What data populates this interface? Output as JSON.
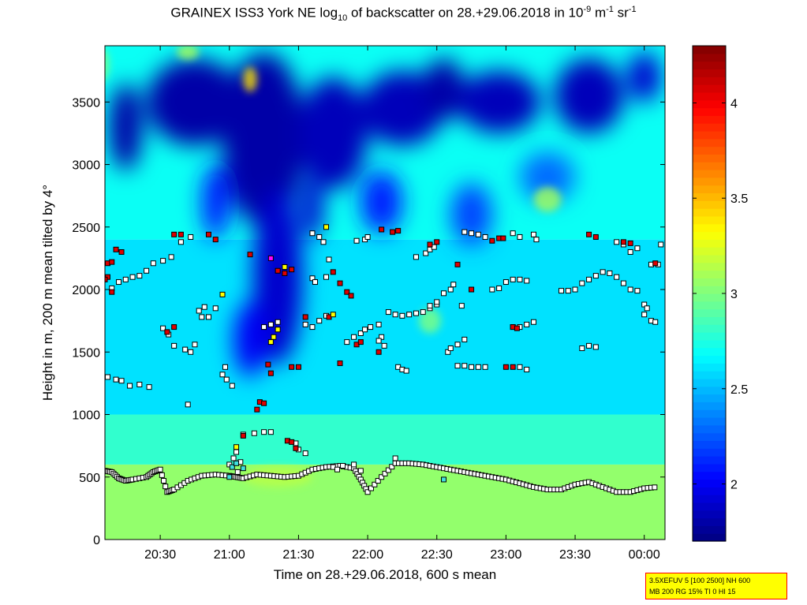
{
  "title": {
    "prefix": "GRAINEX ISS3 York NE log",
    "sub": "10",
    "middle": " of backscatter on 28.+29.06.2018 in 10",
    "sup1": "-9",
    "unit1": " m",
    "sup2": "-1",
    "unit2": " sr",
    "sup3": "-1"
  },
  "info_box": {
    "line1": "3.5XEFUV 5 [100 2500] NH 600",
    "line2": "MB 200 RG 15% TI 0 HI 15"
  },
  "colors": {
    "colormap": "jet",
    "marker_white": "#ffffff",
    "marker_red": "#e00000",
    "marker_yellow": "#ffff00",
    "marker_cyan": "#40e0e0",
    "marker_magenta": "#ff00ff"
  },
  "chart_data": {
    "type": "heatmap",
    "xlabel": "Time on 28.+29.06.2018, 600 s mean",
    "ylabel": "Height in m, 200 m mean tilted by 4°",
    "x_unit": "hours of day (20.1 = 20:06)",
    "xlim": [
      20.1,
      24.15
    ],
    "ylim": [
      0,
      3950
    ],
    "x_ticks": [
      {
        "value": 20.5,
        "label": "20:30"
      },
      {
        "value": 21.0,
        "label": "21:00"
      },
      {
        "value": 21.5,
        "label": "21:30"
      },
      {
        "value": 22.0,
        "label": "22:00"
      },
      {
        "value": 22.5,
        "label": "22:30"
      },
      {
        "value": 23.0,
        "label": "23:00"
      },
      {
        "value": 23.5,
        "label": "23:30"
      },
      {
        "value": 24.0,
        "label": "00:00"
      }
    ],
    "y_ticks": [
      0,
      500,
      1000,
      1500,
      2000,
      2500,
      3000,
      3500
    ],
    "colorbar": {
      "range": [
        1.7,
        4.3
      ],
      "ticks": [
        2,
        2.5,
        3,
        3.5,
        4
      ]
    },
    "background_layers": [
      {
        "y_min": 0,
        "y_max": 600,
        "value": 3.05
      },
      {
        "y_min": 600,
        "y_max": 1000,
        "value": 2.8
      },
      {
        "y_min": 1000,
        "y_max": 2400,
        "value": 2.6
      },
      {
        "y_min": 2400,
        "y_max": 3950,
        "value": 2.7
      }
    ],
    "low_backscatter_patches": [
      {
        "x": 21.25,
        "y": 3200,
        "rx": 0.3,
        "ry": 700,
        "value": 1.8
      },
      {
        "x": 20.75,
        "y": 3500,
        "rx": 0.35,
        "ry": 350,
        "value": 1.8
      },
      {
        "x": 20.25,
        "y": 3300,
        "rx": 0.12,
        "ry": 350,
        "value": 1.8
      },
      {
        "x": 21.35,
        "y": 2100,
        "rx": 0.18,
        "ry": 700,
        "value": 1.9
      },
      {
        "x": 21.15,
        "y": 1600,
        "rx": 0.12,
        "ry": 300,
        "value": 2.0
      },
      {
        "x": 21.75,
        "y": 3250,
        "rx": 0.25,
        "ry": 450,
        "value": 1.85
      },
      {
        "x": 22.25,
        "y": 3450,
        "rx": 0.3,
        "ry": 300,
        "value": 1.85
      },
      {
        "x": 22.55,
        "y": 3600,
        "rx": 0.15,
        "ry": 250,
        "value": 1.8
      },
      {
        "x": 22.95,
        "y": 3500,
        "rx": 0.3,
        "ry": 250,
        "value": 1.85
      },
      {
        "x": 23.6,
        "y": 3550,
        "rx": 0.25,
        "ry": 300,
        "value": 1.85
      },
      {
        "x": 24.0,
        "y": 3700,
        "rx": 0.12,
        "ry": 200,
        "value": 1.9
      },
      {
        "x": 22.1,
        "y": 2700,
        "rx": 0.15,
        "ry": 250,
        "value": 2.1
      },
      {
        "x": 22.75,
        "y": 2600,
        "rx": 0.15,
        "ry": 250,
        "value": 2.2
      },
      {
        "x": 23.3,
        "y": 2900,
        "rx": 0.2,
        "ry": 200,
        "value": 2.3
      },
      {
        "x": 21.6,
        "y": 2650,
        "rx": 0.08,
        "ry": 250,
        "value": 1.9
      },
      {
        "x": 20.9,
        "y": 2700,
        "rx": 0.1,
        "ry": 300,
        "value": 2.1
      }
    ],
    "high_backscatter_patches": [
      {
        "x": 21.15,
        "y": 3680,
        "rx": 0.05,
        "ry": 100,
        "value": 3.4
      },
      {
        "x": 20.7,
        "y": 3900,
        "rx": 0.08,
        "ry": 60,
        "value": 3.1
      },
      {
        "x": 20.05,
        "y": 3800,
        "rx": 0.08,
        "ry": 150,
        "value": 3.0
      },
      {
        "x": 23.3,
        "y": 2720,
        "rx": 0.1,
        "ry": 100,
        "value": 3.1
      },
      {
        "x": 22.45,
        "y": 1750,
        "rx": 0.08,
        "ry": 100,
        "value": 3.0
      },
      {
        "x": 21.35,
        "y": 500,
        "rx": 0.25,
        "ry": 80,
        "value": 3.15
      }
    ],
    "boundary_layer_top": {
      "x": [
        20.1,
        20.15,
        20.2,
        20.25,
        20.3,
        20.4,
        20.45,
        20.5,
        20.55,
        20.6,
        20.7,
        20.8,
        20.9,
        21.0,
        21.05,
        21.1,
        21.2,
        21.3,
        21.4,
        21.5,
        21.6,
        21.7,
        21.8,
        21.9,
        21.95,
        22.0,
        22.1,
        22.2,
        22.3,
        22.4,
        22.5,
        22.6,
        22.7,
        22.8,
        22.9,
        23.0,
        23.1,
        23.2,
        23.3,
        23.4,
        23.5,
        23.6,
        23.7,
        23.8,
        23.9,
        24.0,
        24.1
      ],
      "y": [
        550,
        540,
        490,
        470,
        480,
        500,
        540,
        560,
        380,
        400,
        470,
        510,
        520,
        510,
        500,
        490,
        520,
        510,
        500,
        510,
        560,
        580,
        590,
        570,
        480,
        380,
        500,
        610,
        610,
        600,
        580,
        560,
        540,
        520,
        500,
        480,
        450,
        420,
        400,
        400,
        440,
        460,
        420,
        380,
        380,
        410,
        420
      ]
    },
    "layer_detections": {
      "white": [
        [
          20.12,
          1300
        ],
        [
          20.18,
          1280
        ],
        [
          20.22,
          1270
        ],
        [
          20.28,
          1230
        ],
        [
          20.35,
          1240
        ],
        [
          20.42,
          1220
        ],
        [
          20.15,
          2010
        ],
        [
          20.2,
          2060
        ],
        [
          20.25,
          2080
        ],
        [
          20.3,
          2100
        ],
        [
          20.35,
          2110
        ],
        [
          20.4,
          2150
        ],
        [
          20.45,
          2210
        ],
        [
          20.52,
          2230
        ],
        [
          20.58,
          2260
        ],
        [
          20.65,
          2380
        ],
        [
          20.72,
          2420
        ],
        [
          20.52,
          1690
        ],
        [
          20.56,
          1640
        ],
        [
          20.6,
          1550
        ],
        [
          20.68,
          1520
        ],
        [
          20.72,
          1500
        ],
        [
          20.75,
          1560
        ],
        [
          20.78,
          1830
        ],
        [
          20.82,
          1860
        ],
        [
          20.85,
          1780
        ],
        [
          20.9,
          1850
        ],
        [
          20.7,
          1080
        ],
        [
          20.8,
          1780
        ],
        [
          20.97,
          1380
        ],
        [
          20.98,
          1280
        ],
        [
          21.02,
          1230
        ],
        [
          20.95,
          1320
        ],
        [
          21.0,
          600
        ],
        [
          21.03,
          650
        ],
        [
          21.05,
          700
        ],
        [
          21.08,
          620
        ],
        [
          21.06,
          540
        ],
        [
          21.1,
          840
        ],
        [
          21.18,
          850
        ],
        [
          21.25,
          860
        ],
        [
          21.3,
          860
        ],
        [
          21.25,
          1700
        ],
        [
          21.3,
          1720
        ],
        [
          21.35,
          1740
        ],
        [
          21.5,
          720
        ],
        [
          21.55,
          690
        ],
        [
          21.48,
          770
        ],
        [
          21.55,
          1720
        ],
        [
          21.6,
          1700
        ],
        [
          21.65,
          1750
        ],
        [
          21.7,
          1790
        ],
        [
          21.6,
          2450
        ],
        [
          21.65,
          2420
        ],
        [
          21.68,
          2380
        ],
        [
          21.6,
          2090
        ],
        [
          21.62,
          2060
        ],
        [
          21.7,
          2100
        ],
        [
          21.72,
          2240
        ],
        [
          21.75,
          580
        ],
        [
          21.78,
          560
        ],
        [
          21.82,
          590
        ],
        [
          21.9,
          600
        ],
        [
          21.95,
          550
        ],
        [
          21.85,
          1580
        ],
        [
          21.9,
          1620
        ],
        [
          21.95,
          1650
        ],
        [
          21.98,
          1680
        ],
        [
          22.02,
          1700
        ],
        [
          22.08,
          1720
        ],
        [
          22.1,
          1620
        ],
        [
          22.12,
          1550
        ],
        [
          22.08,
          1590
        ],
        [
          21.92,
          2390
        ],
        [
          21.98,
          2400
        ],
        [
          22.0,
          2420
        ],
        [
          22.15,
          1820
        ],
        [
          22.2,
          1800
        ],
        [
          22.25,
          1790
        ],
        [
          22.3,
          1800
        ],
        [
          22.35,
          1810
        ],
        [
          22.4,
          1820
        ],
        [
          22.45,
          1850
        ],
        [
          22.5,
          1880
        ],
        [
          22.22,
          1380
        ],
        [
          22.25,
          1360
        ],
        [
          22.28,
          1350
        ],
        [
          22.2,
          650
        ],
        [
          22.35,
          2260
        ],
        [
          22.42,
          2290
        ],
        [
          22.45,
          2320
        ],
        [
          22.48,
          2340
        ],
        [
          22.45,
          1870
        ],
        [
          22.5,
          1900
        ],
        [
          22.58,
          1500
        ],
        [
          22.6,
          1530
        ],
        [
          22.65,
          1560
        ],
        [
          22.7,
          1600
        ],
        [
          22.65,
          1390
        ],
        [
          22.7,
          1390
        ],
        [
          22.75,
          1380
        ],
        [
          22.8,
          1380
        ],
        [
          22.85,
          1380
        ],
        [
          22.55,
          1970
        ],
        [
          22.6,
          2000
        ],
        [
          22.62,
          2040
        ],
        [
          22.68,
          1870
        ],
        [
          22.7,
          2460
        ],
        [
          22.75,
          2450
        ],
        [
          22.8,
          2440
        ],
        [
          22.85,
          2420
        ],
        [
          22.9,
          2000
        ],
        [
          22.95,
          2010
        ],
        [
          23.0,
          2060
        ],
        [
          23.05,
          2080
        ],
        [
          23.1,
          2080
        ],
        [
          23.15,
          2070
        ],
        [
          23.05,
          1700
        ],
        [
          23.1,
          1700
        ],
        [
          23.15,
          1720
        ],
        [
          23.2,
          1740
        ],
        [
          23.1,
          1380
        ],
        [
          23.15,
          1360
        ],
        [
          23.05,
          2450
        ],
        [
          23.1,
          2420
        ],
        [
          23.2,
          2440
        ],
        [
          23.22,
          2400
        ],
        [
          23.4,
          1990
        ],
        [
          23.45,
          1990
        ],
        [
          23.5,
          2000
        ],
        [
          23.55,
          2050
        ],
        [
          23.6,
          2080
        ],
        [
          23.65,
          2110
        ],
        [
          23.7,
          2140
        ],
        [
          23.75,
          2130
        ],
        [
          23.8,
          2100
        ],
        [
          23.85,
          2050
        ],
        [
          23.9,
          2000
        ],
        [
          23.95,
          1990
        ],
        [
          24.0,
          1880
        ],
        [
          24.02,
          1850
        ],
        [
          23.55,
          1530
        ],
        [
          23.6,
          1550
        ],
        [
          23.65,
          1540
        ],
        [
          23.8,
          2380
        ],
        [
          23.85,
          2360
        ],
        [
          23.9,
          2300
        ],
        [
          23.95,
          2330
        ],
        [
          24.05,
          2200
        ],
        [
          24.1,
          2200
        ],
        [
          24.05,
          1750
        ],
        [
          24.08,
          1740
        ],
        [
          24.0,
          1800
        ],
        [
          24.12,
          2360
        ]
      ],
      "red": [
        [
          20.12,
          2210
        ],
        [
          20.15,
          2220
        ],
        [
          20.18,
          2320
        ],
        [
          20.22,
          2300
        ],
        [
          20.15,
          1980
        ],
        [
          20.12,
          2100
        ],
        [
          20.1,
          2080
        ],
        [
          20.6,
          2440
        ],
        [
          20.65,
          2440
        ],
        [
          20.6,
          1700
        ],
        [
          20.55,
          1660
        ],
        [
          20.85,
          2440
        ],
        [
          20.9,
          2400
        ],
        [
          21.1,
          830
        ],
        [
          21.2,
          1040
        ],
        [
          21.22,
          1100
        ],
        [
          21.25,
          1090
        ],
        [
          21.15,
          2280
        ],
        [
          21.28,
          1400
        ],
        [
          21.3,
          1330
        ],
        [
          21.35,
          2150
        ],
        [
          21.4,
          2130
        ],
        [
          21.45,
          2160
        ],
        [
          21.42,
          790
        ],
        [
          21.45,
          780
        ],
        [
          21.48,
          730
        ],
        [
          21.45,
          1380
        ],
        [
          21.5,
          1380
        ],
        [
          21.55,
          1780
        ],
        [
          21.75,
          2140
        ],
        [
          21.8,
          2050
        ],
        [
          21.85,
          1980
        ],
        [
          21.88,
          1950
        ],
        [
          21.8,
          1410
        ],
        [
          21.72,
          1780
        ],
        [
          21.92,
          1560
        ],
        [
          21.95,
          1580
        ],
        [
          22.08,
          1500
        ],
        [
          22.1,
          2480
        ],
        [
          22.18,
          2460
        ],
        [
          22.22,
          2470
        ],
        [
          22.45,
          2360
        ],
        [
          22.5,
          2380
        ],
        [
          22.65,
          2200
        ],
        [
          22.75,
          2000
        ],
        [
          22.9,
          2390
        ],
        [
          22.95,
          2410
        ],
        [
          22.98,
          2410
        ],
        [
          23.0,
          1380
        ],
        [
          23.05,
          1380
        ],
        [
          23.05,
          1700
        ],
        [
          23.08,
          1690
        ],
        [
          23.6,
          2440
        ],
        [
          23.65,
          2420
        ],
        [
          23.85,
          2380
        ],
        [
          23.9,
          2370
        ],
        [
          24.08,
          2210
        ]
      ],
      "yellow": [
        [
          20.95,
          1960
        ],
        [
          21.3,
          1580
        ],
        [
          21.32,
          1620
        ],
        [
          21.35,
          1680
        ],
        [
          21.4,
          2180
        ],
        [
          21.7,
          2500
        ],
        [
          21.75,
          1800
        ],
        [
          21.05,
          740
        ]
      ],
      "cyan": [
        [
          21.02,
          580
        ],
        [
          21.05,
          610
        ],
        [
          21.1,
          570
        ],
        [
          21.0,
          500
        ],
        [
          22.55,
          480
        ]
      ],
      "magenta": [
        [
          21.3,
          2250
        ]
      ]
    }
  }
}
